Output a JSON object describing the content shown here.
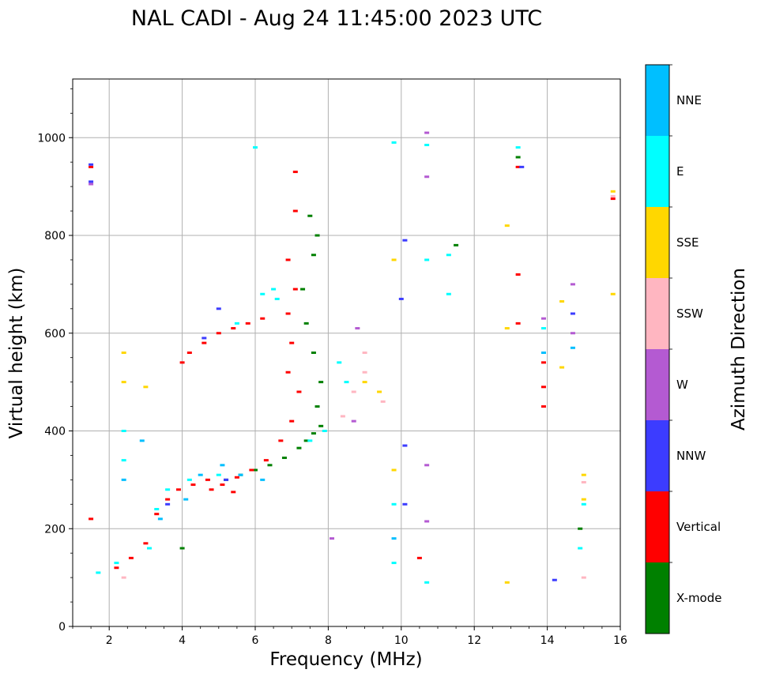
{
  "chart_data": {
    "type": "scatter",
    "title": "NAL CADI - Aug 24 11:45:00 2023 UTC",
    "xlabel": "Frequency (MHz)",
    "ylabel": "Virtual height (km)",
    "colorbar_label": "Azimuth Direction",
    "xlim": [
      1,
      16
    ],
    "ylim": [
      0,
      1120
    ],
    "xticks": [
      2,
      4,
      6,
      8,
      10,
      12,
      14,
      16
    ],
    "yticks": [
      0,
      200,
      400,
      600,
      800,
      1000
    ],
    "xtick_labels": [
      "2",
      "4",
      "6",
      "8",
      "10",
      "12",
      "14",
      "16"
    ],
    "ytick_labels": [
      "0",
      "200",
      "400",
      "600",
      "800",
      "1000"
    ],
    "grid": true,
    "categories": [
      "X-mode",
      "Vertical",
      "NNW",
      "W",
      "SSW",
      "SSE",
      "E",
      "NNE"
    ],
    "category_colors": [
      "#008000",
      "#ff0000",
      "#3c3cff",
      "#b45ad2",
      "#ffb6c1",
      "#ffd700",
      "#00ffff",
      "#00bfff"
    ],
    "series": [
      {
        "name": "X-mode",
        "points": [
          [
            7.4,
            380
          ],
          [
            7.6,
            395
          ],
          [
            7.8,
            410
          ],
          [
            7.7,
            450
          ],
          [
            7.8,
            500
          ],
          [
            7.6,
            560
          ],
          [
            7.4,
            620
          ],
          [
            7.3,
            690
          ],
          [
            7.6,
            760
          ],
          [
            7.7,
            800
          ],
          [
            7.5,
            840
          ],
          [
            5.2,
            300
          ],
          [
            5.6,
            310
          ],
          [
            6.0,
            320
          ],
          [
            6.4,
            330
          ],
          [
            6.8,
            345
          ],
          [
            7.2,
            365
          ],
          [
            4.0,
            160
          ],
          [
            11.5,
            780
          ],
          [
            13.2,
            960
          ],
          [
            14.9,
            200
          ]
        ]
      },
      {
        "name": "Vertical",
        "points": [
          [
            1.5,
            220
          ],
          [
            2.2,
            120
          ],
          [
            2.6,
            140
          ],
          [
            3.0,
            170
          ],
          [
            3.3,
            230
          ],
          [
            3.6,
            260
          ],
          [
            3.9,
            280
          ],
          [
            4.3,
            290
          ],
          [
            4.7,
            300
          ],
          [
            5.1,
            290
          ],
          [
            5.5,
            305
          ],
          [
            5.9,
            320
          ],
          [
            6.3,
            340
          ],
          [
            6.7,
            380
          ],
          [
            7.0,
            420
          ],
          [
            7.2,
            480
          ],
          [
            6.9,
            520
          ],
          [
            7.0,
            580
          ],
          [
            6.9,
            640
          ],
          [
            7.1,
            690
          ],
          [
            6.9,
            750
          ],
          [
            7.1,
            850
          ],
          [
            7.1,
            930
          ],
          [
            4.0,
            540
          ],
          [
            4.2,
            560
          ],
          [
            4.6,
            580
          ],
          [
            5.0,
            600
          ],
          [
            5.4,
            610
          ],
          [
            5.8,
            620
          ],
          [
            6.2,
            630
          ],
          [
            4.8,
            280
          ],
          [
            5.4,
            275
          ],
          [
            13.2,
            940
          ],
          [
            13.2,
            620
          ],
          [
            13.2,
            720
          ],
          [
            13.9,
            540
          ],
          [
            13.9,
            450
          ],
          [
            13.9,
            490
          ],
          [
            10.5,
            140
          ],
          [
            15.8,
            875
          ],
          [
            1.5,
            940
          ]
        ]
      },
      {
        "name": "NNW",
        "points": [
          [
            1.5,
            910
          ],
          [
            1.5,
            945
          ],
          [
            4.6,
            590
          ],
          [
            5.0,
            650
          ],
          [
            10.0,
            670
          ],
          [
            10.1,
            250
          ],
          [
            10.1,
            370
          ],
          [
            10.1,
            790
          ],
          [
            14.2,
            95
          ],
          [
            13.3,
            940
          ],
          [
            14.7,
            640
          ],
          [
            5.2,
            300
          ],
          [
            3.6,
            250
          ]
        ]
      },
      {
        "name": "W",
        "points": [
          [
            8.1,
            180
          ],
          [
            8.7,
            420
          ],
          [
            8.8,
            610
          ],
          [
            10.7,
            1010
          ],
          [
            10.7,
            920
          ],
          [
            10.7,
            330
          ],
          [
            10.7,
            215
          ],
          [
            14.7,
            700
          ],
          [
            14.7,
            600
          ],
          [
            13.9,
            630
          ],
          [
            1.5,
            905
          ]
        ]
      },
      {
        "name": "SSW",
        "points": [
          [
            2.4,
            100
          ],
          [
            8.4,
            430
          ],
          [
            8.7,
            480
          ],
          [
            9.0,
            520
          ],
          [
            9.0,
            560
          ],
          [
            9.5,
            460
          ],
          [
            15.0,
            100
          ],
          [
            15.0,
            295
          ],
          [
            15.8,
            880
          ]
        ]
      },
      {
        "name": "SSE",
        "points": [
          [
            2.4,
            500
          ],
          [
            2.4,
            560
          ],
          [
            3.0,
            490
          ],
          [
            9.0,
            500
          ],
          [
            9.4,
            480
          ],
          [
            9.8,
            320
          ],
          [
            9.8,
            750
          ],
          [
            12.9,
            90
          ],
          [
            12.9,
            820
          ],
          [
            12.9,
            610
          ],
          [
            14.4,
            530
          ],
          [
            14.4,
            665
          ],
          [
            15.0,
            260
          ],
          [
            15.0,
            310
          ],
          [
            15.8,
            890
          ],
          [
            15.8,
            680
          ]
        ]
      },
      {
        "name": "E",
        "points": [
          [
            1.7,
            110
          ],
          [
            2.2,
            130
          ],
          [
            2.4,
            340
          ],
          [
            2.4,
            400
          ],
          [
            3.1,
            160
          ],
          [
            3.3,
            240
          ],
          [
            3.6,
            280
          ],
          [
            4.2,
            300
          ],
          [
            5.0,
            310
          ],
          [
            5.5,
            620
          ],
          [
            6.2,
            680
          ],
          [
            6.6,
            670
          ],
          [
            7.5,
            380
          ],
          [
            7.9,
            400
          ],
          [
            8.3,
            540
          ],
          [
            8.5,
            500
          ],
          [
            9.8,
            990
          ],
          [
            9.8,
            130
          ],
          [
            9.8,
            250
          ],
          [
            10.7,
            90
          ],
          [
            10.7,
            985
          ],
          [
            10.7,
            750
          ],
          [
            11.3,
            760
          ],
          [
            11.3,
            680
          ],
          [
            13.2,
            980
          ],
          [
            13.9,
            610
          ],
          [
            14.9,
            160
          ],
          [
            15.0,
            250
          ],
          [
            6.0,
            980
          ],
          [
            6.5,
            690
          ]
        ]
      },
      {
        "name": "NNE",
        "points": [
          [
            2.4,
            300
          ],
          [
            2.9,
            380
          ],
          [
            3.4,
            220
          ],
          [
            4.1,
            260
          ],
          [
            4.5,
            310
          ],
          [
            5.1,
            330
          ],
          [
            5.6,
            310
          ],
          [
            6.2,
            300
          ],
          [
            9.8,
            180
          ],
          [
            13.9,
            560
          ],
          [
            14.7,
            570
          ]
        ]
      }
    ]
  }
}
